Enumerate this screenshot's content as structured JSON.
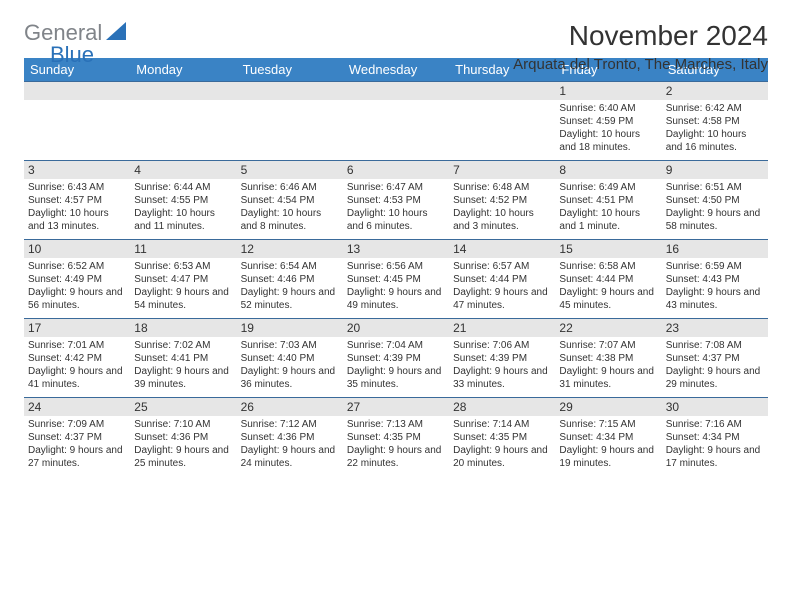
{
  "logo": {
    "general": "General",
    "blue": "Blue"
  },
  "title": "November 2024",
  "location": "Arquata del Tronto, The Marches, Italy",
  "colors": {
    "header_bg": "#3a83c5",
    "header_text": "#ffffff",
    "date_bg": "#e6e6e6",
    "divider": "#3a6a9a",
    "logo_general": "#808489",
    "logo_blue": "#2a71b8",
    "body_text": "#333333",
    "logo_triangle": "#2a71b8"
  },
  "typography": {
    "title_fontsize": 28,
    "location_fontsize": 15,
    "weekday_fontsize": 13,
    "date_fontsize": 12,
    "body_fontsize": 10
  },
  "weekdays": [
    "Sunday",
    "Monday",
    "Tuesday",
    "Wednesday",
    "Thursday",
    "Friday",
    "Saturday"
  ],
  "weeks": [
    [
      {
        "date": "",
        "sunrise": "",
        "sunset": "",
        "daylight": ""
      },
      {
        "date": "",
        "sunrise": "",
        "sunset": "",
        "daylight": ""
      },
      {
        "date": "",
        "sunrise": "",
        "sunset": "",
        "daylight": ""
      },
      {
        "date": "",
        "sunrise": "",
        "sunset": "",
        "daylight": ""
      },
      {
        "date": "",
        "sunrise": "",
        "sunset": "",
        "daylight": ""
      },
      {
        "date": "1",
        "sunrise": "Sunrise: 6:40 AM",
        "sunset": "Sunset: 4:59 PM",
        "daylight": "Daylight: 10 hours and 18 minutes."
      },
      {
        "date": "2",
        "sunrise": "Sunrise: 6:42 AM",
        "sunset": "Sunset: 4:58 PM",
        "daylight": "Daylight: 10 hours and 16 minutes."
      }
    ],
    [
      {
        "date": "3",
        "sunrise": "Sunrise: 6:43 AM",
        "sunset": "Sunset: 4:57 PM",
        "daylight": "Daylight: 10 hours and 13 minutes."
      },
      {
        "date": "4",
        "sunrise": "Sunrise: 6:44 AM",
        "sunset": "Sunset: 4:55 PM",
        "daylight": "Daylight: 10 hours and 11 minutes."
      },
      {
        "date": "5",
        "sunrise": "Sunrise: 6:46 AM",
        "sunset": "Sunset: 4:54 PM",
        "daylight": "Daylight: 10 hours and 8 minutes."
      },
      {
        "date": "6",
        "sunrise": "Sunrise: 6:47 AM",
        "sunset": "Sunset: 4:53 PM",
        "daylight": "Daylight: 10 hours and 6 minutes."
      },
      {
        "date": "7",
        "sunrise": "Sunrise: 6:48 AM",
        "sunset": "Sunset: 4:52 PM",
        "daylight": "Daylight: 10 hours and 3 minutes."
      },
      {
        "date": "8",
        "sunrise": "Sunrise: 6:49 AM",
        "sunset": "Sunset: 4:51 PM",
        "daylight": "Daylight: 10 hours and 1 minute."
      },
      {
        "date": "9",
        "sunrise": "Sunrise: 6:51 AM",
        "sunset": "Sunset: 4:50 PM",
        "daylight": "Daylight: 9 hours and 58 minutes."
      }
    ],
    [
      {
        "date": "10",
        "sunrise": "Sunrise: 6:52 AM",
        "sunset": "Sunset: 4:49 PM",
        "daylight": "Daylight: 9 hours and 56 minutes."
      },
      {
        "date": "11",
        "sunrise": "Sunrise: 6:53 AM",
        "sunset": "Sunset: 4:47 PM",
        "daylight": "Daylight: 9 hours and 54 minutes."
      },
      {
        "date": "12",
        "sunrise": "Sunrise: 6:54 AM",
        "sunset": "Sunset: 4:46 PM",
        "daylight": "Daylight: 9 hours and 52 minutes."
      },
      {
        "date": "13",
        "sunrise": "Sunrise: 6:56 AM",
        "sunset": "Sunset: 4:45 PM",
        "daylight": "Daylight: 9 hours and 49 minutes."
      },
      {
        "date": "14",
        "sunrise": "Sunrise: 6:57 AM",
        "sunset": "Sunset: 4:44 PM",
        "daylight": "Daylight: 9 hours and 47 minutes."
      },
      {
        "date": "15",
        "sunrise": "Sunrise: 6:58 AM",
        "sunset": "Sunset: 4:44 PM",
        "daylight": "Daylight: 9 hours and 45 minutes."
      },
      {
        "date": "16",
        "sunrise": "Sunrise: 6:59 AM",
        "sunset": "Sunset: 4:43 PM",
        "daylight": "Daylight: 9 hours and 43 minutes."
      }
    ],
    [
      {
        "date": "17",
        "sunrise": "Sunrise: 7:01 AM",
        "sunset": "Sunset: 4:42 PM",
        "daylight": "Daylight: 9 hours and 41 minutes."
      },
      {
        "date": "18",
        "sunrise": "Sunrise: 7:02 AM",
        "sunset": "Sunset: 4:41 PM",
        "daylight": "Daylight: 9 hours and 39 minutes."
      },
      {
        "date": "19",
        "sunrise": "Sunrise: 7:03 AM",
        "sunset": "Sunset: 4:40 PM",
        "daylight": "Daylight: 9 hours and 36 minutes."
      },
      {
        "date": "20",
        "sunrise": "Sunrise: 7:04 AM",
        "sunset": "Sunset: 4:39 PM",
        "daylight": "Daylight: 9 hours and 35 minutes."
      },
      {
        "date": "21",
        "sunrise": "Sunrise: 7:06 AM",
        "sunset": "Sunset: 4:39 PM",
        "daylight": "Daylight: 9 hours and 33 minutes."
      },
      {
        "date": "22",
        "sunrise": "Sunrise: 7:07 AM",
        "sunset": "Sunset: 4:38 PM",
        "daylight": "Daylight: 9 hours and 31 minutes."
      },
      {
        "date": "23",
        "sunrise": "Sunrise: 7:08 AM",
        "sunset": "Sunset: 4:37 PM",
        "daylight": "Daylight: 9 hours and 29 minutes."
      }
    ],
    [
      {
        "date": "24",
        "sunrise": "Sunrise: 7:09 AM",
        "sunset": "Sunset: 4:37 PM",
        "daylight": "Daylight: 9 hours and 27 minutes."
      },
      {
        "date": "25",
        "sunrise": "Sunrise: 7:10 AM",
        "sunset": "Sunset: 4:36 PM",
        "daylight": "Daylight: 9 hours and 25 minutes."
      },
      {
        "date": "26",
        "sunrise": "Sunrise: 7:12 AM",
        "sunset": "Sunset: 4:36 PM",
        "daylight": "Daylight: 9 hours and 24 minutes."
      },
      {
        "date": "27",
        "sunrise": "Sunrise: 7:13 AM",
        "sunset": "Sunset: 4:35 PM",
        "daylight": "Daylight: 9 hours and 22 minutes."
      },
      {
        "date": "28",
        "sunrise": "Sunrise: 7:14 AM",
        "sunset": "Sunset: 4:35 PM",
        "daylight": "Daylight: 9 hours and 20 minutes."
      },
      {
        "date": "29",
        "sunrise": "Sunrise: 7:15 AM",
        "sunset": "Sunset: 4:34 PM",
        "daylight": "Daylight: 9 hours and 19 minutes."
      },
      {
        "date": "30",
        "sunrise": "Sunrise: 7:16 AM",
        "sunset": "Sunset: 4:34 PM",
        "daylight": "Daylight: 9 hours and 17 minutes."
      }
    ]
  ]
}
